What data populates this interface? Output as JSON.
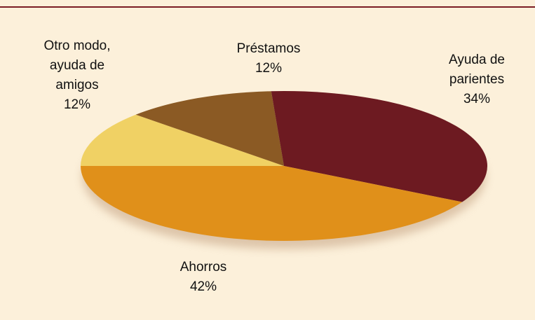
{
  "chart_data": {
    "type": "pie",
    "categories": [
      "Otro modo, ayuda de amigos",
      "Préstamos",
      "Ayuda de parientes",
      "Ahorros"
    ],
    "values": [
      12,
      12,
      34,
      42
    ],
    "value_labels": [
      "12%",
      "12%",
      "34%",
      "42%"
    ],
    "colors": [
      "#f0d164",
      "#8b5a24",
      "#6d1a21",
      "#e0901a"
    ]
  }
}
